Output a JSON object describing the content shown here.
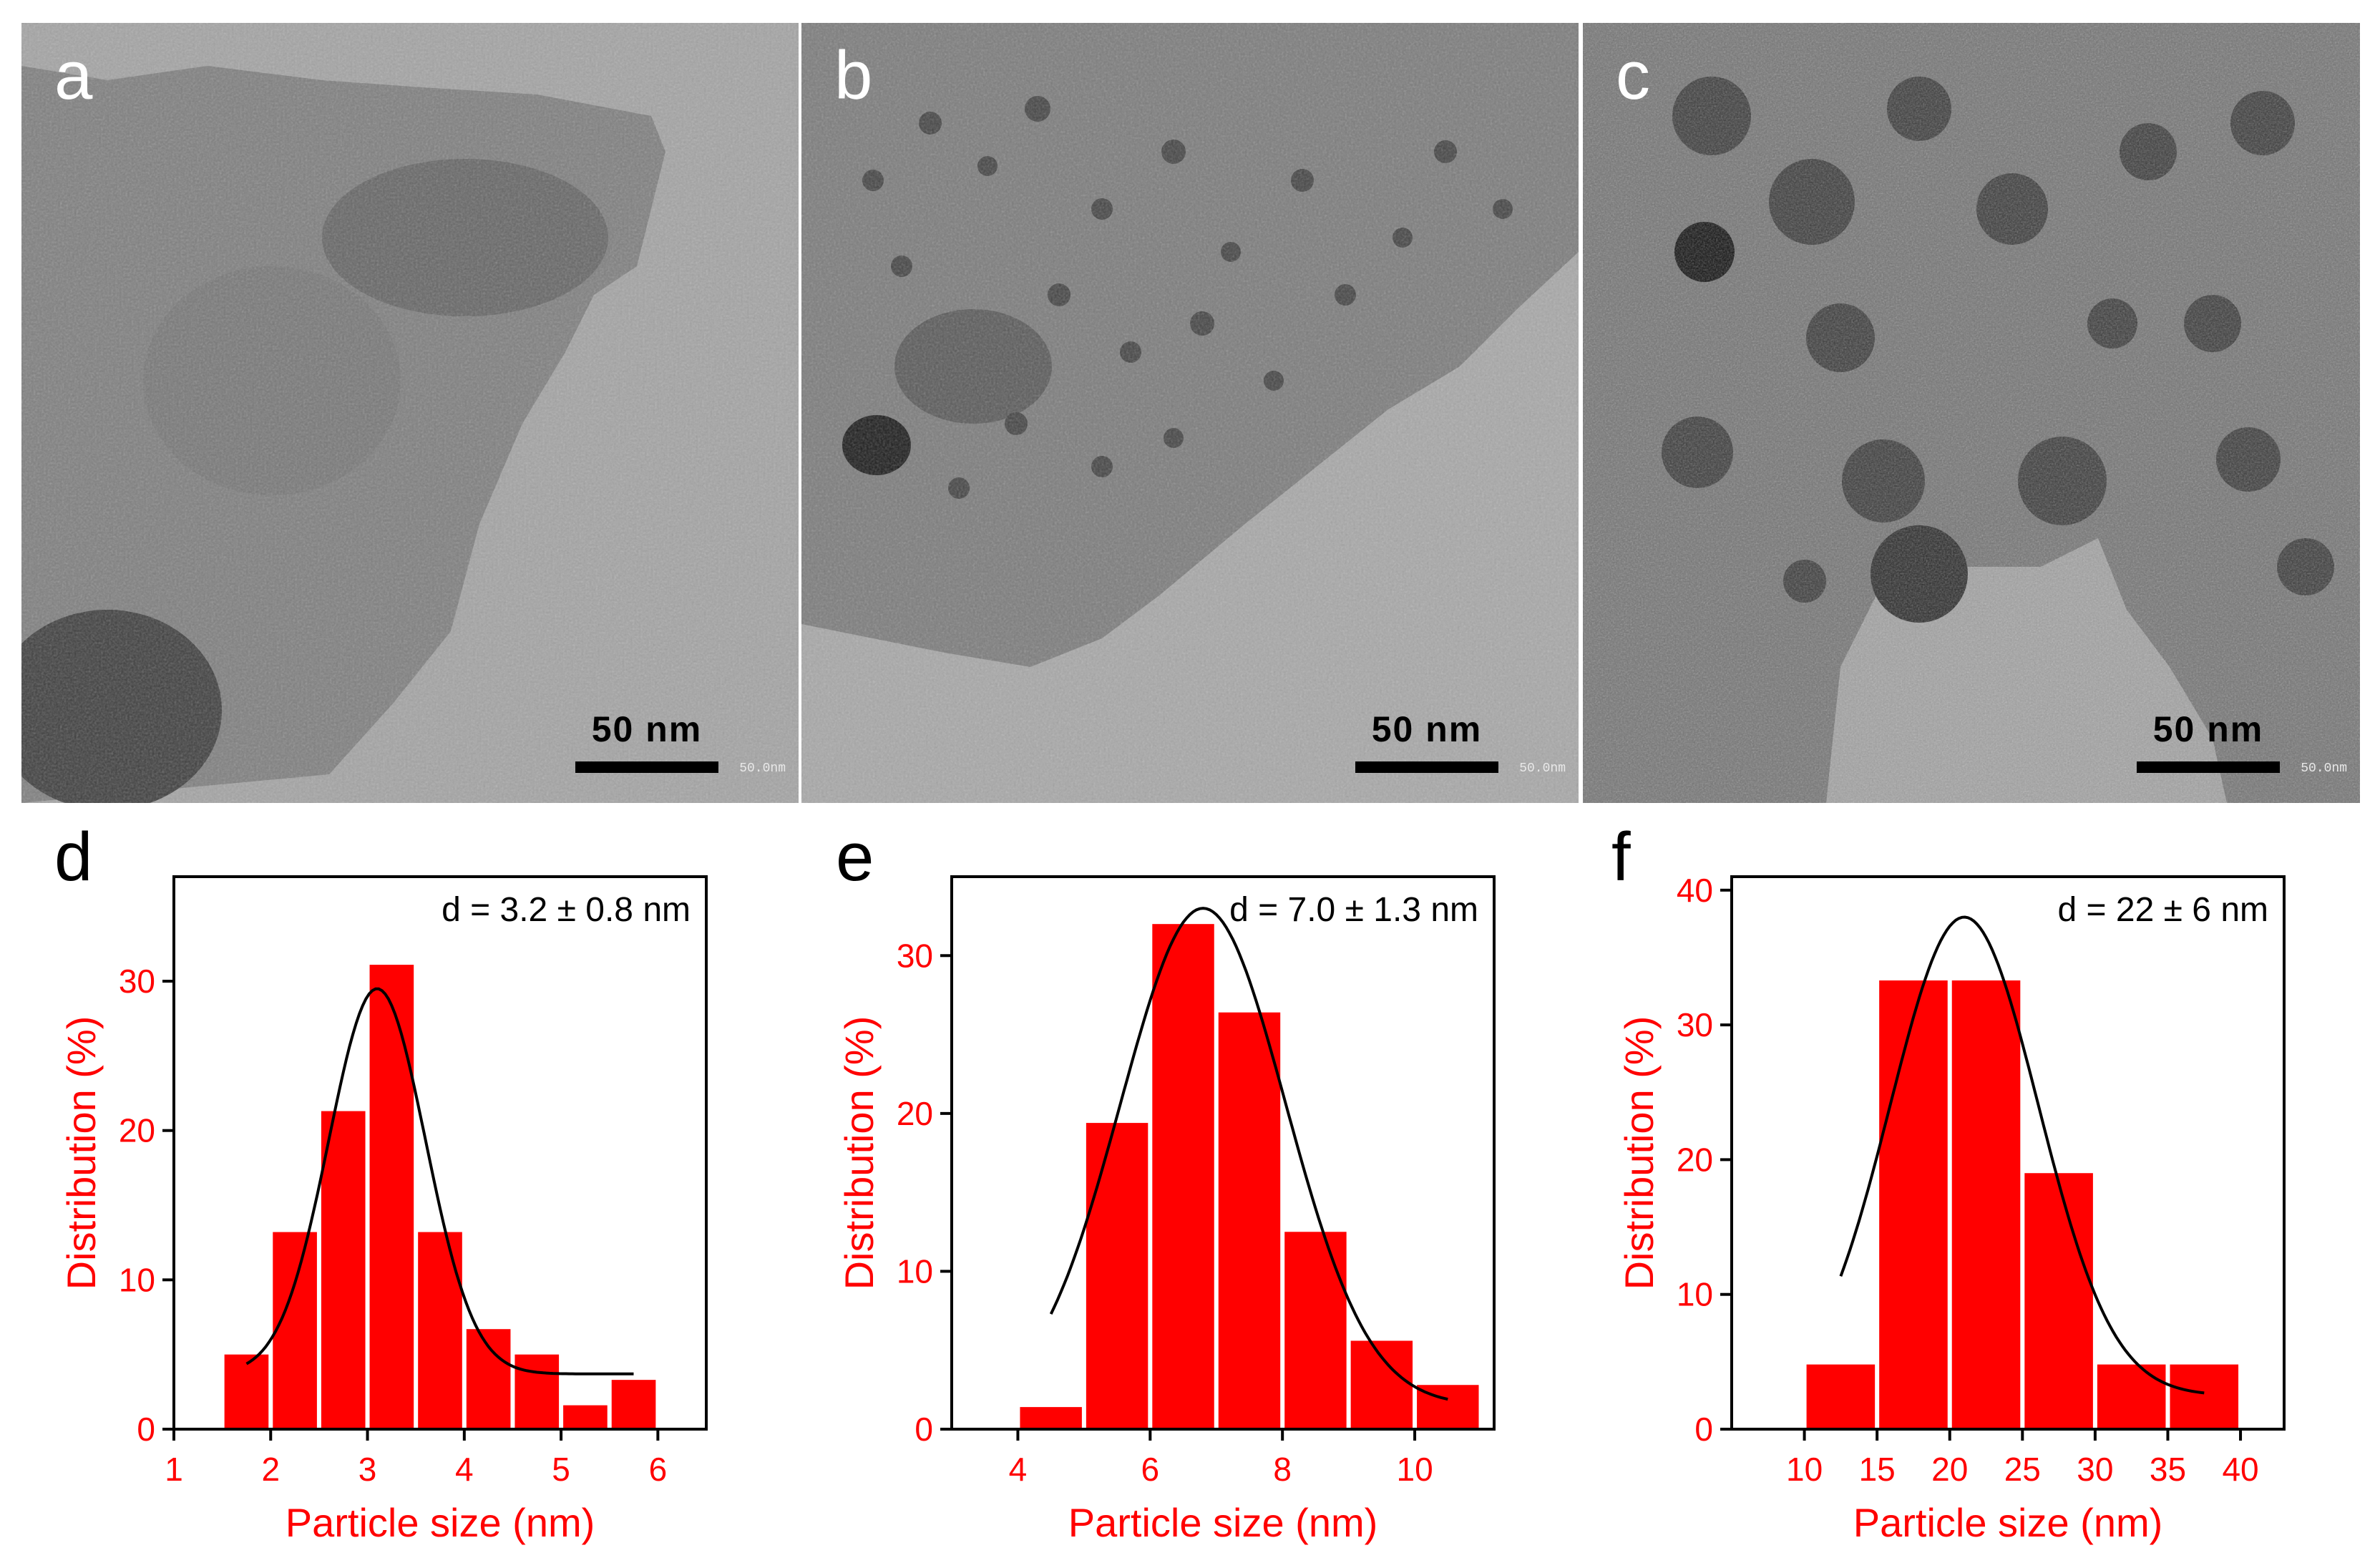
{
  "panels_tem": [
    {
      "letter": "a",
      "scale_label": "50 nm",
      "scale_small": "50.0nm"
    },
    {
      "letter": "b",
      "scale_label": "50 nm",
      "scale_small": "50.0nm"
    },
    {
      "letter": "c",
      "scale_label": "50 nm",
      "scale_small": "50.0nm"
    }
  ],
  "colors": {
    "bars": "#ff0000",
    "fit_line": "#000000",
    "axis_text": "#ff0000"
  },
  "chart_data": [
    {
      "panel": "d",
      "type": "bar",
      "annotation": "d = 3.2 ± 0.8 nm",
      "xlabel": "Particle size (nm)",
      "ylabel": "Distribution (%)",
      "xlim": [
        1,
        6.5
      ],
      "ylim": [
        0,
        37
      ],
      "xticks": [
        1,
        2,
        3,
        4,
        5,
        6
      ],
      "yticks": [
        0,
        10,
        20,
        30
      ],
      "bin_width": 0.5,
      "bin_centers": [
        1.75,
        2.25,
        2.75,
        3.25,
        3.75,
        4.25,
        4.75,
        5.25,
        5.75
      ],
      "values": [
        5.0,
        13.2,
        21.3,
        31.1,
        13.2,
        6.7,
        5.0,
        1.6,
        3.3
      ],
      "fit_curve": {
        "x_range": [
          1.75,
          5.75
        ],
        "mean": 3.1,
        "sigma": 0.5,
        "amplitude": 25.8,
        "baseline": 3.7
      }
    },
    {
      "panel": "e",
      "type": "bar",
      "annotation": "d = 7.0 ± 1.3 nm",
      "xlabel": "Particle size (nm)",
      "ylabel": "Distribution (%)",
      "xlim": [
        3,
        11.2
      ],
      "ylim": [
        0,
        35
      ],
      "xticks": [
        4,
        6,
        8,
        10
      ],
      "yticks": [
        0,
        10,
        20,
        30
      ],
      "bin_width": 1,
      "bin_centers": [
        4.5,
        5.5,
        6.5,
        7.5,
        8.5,
        9.5,
        10.5
      ],
      "values": [
        1.4,
        19.4,
        32.0,
        26.4,
        12.5,
        5.6,
        2.8
      ],
      "fit_curve": {
        "x_range": [
          4.5,
          10.5
        ],
        "mean": 6.8,
        "sigma": 1.25,
        "amplitude": 31.5,
        "baseline": 1.5
      }
    },
    {
      "panel": "f",
      "type": "bar",
      "annotation": "d = 22 ± 6 nm",
      "xlabel": "Particle size (nm)",
      "ylabel": "Distribution (%)",
      "xlim": [
        5,
        43
      ],
      "ylim": [
        0,
        41
      ],
      "xticks": [
        10,
        15,
        20,
        25,
        30,
        35,
        40
      ],
      "yticks": [
        0,
        10,
        20,
        30,
        40
      ],
      "bin_width": 5,
      "bin_centers": [
        12.5,
        17.5,
        22.5,
        27.5,
        32.5,
        37.5
      ],
      "values": [
        4.8,
        33.3,
        33.3,
        19.0,
        4.8,
        4.8
      ],
      "fit_curve": {
        "x_range": [
          12.5,
          37.5
        ],
        "mean": 21,
        "sigma": 5.1,
        "amplitude": 35.5,
        "baseline": 2.5
      }
    }
  ]
}
